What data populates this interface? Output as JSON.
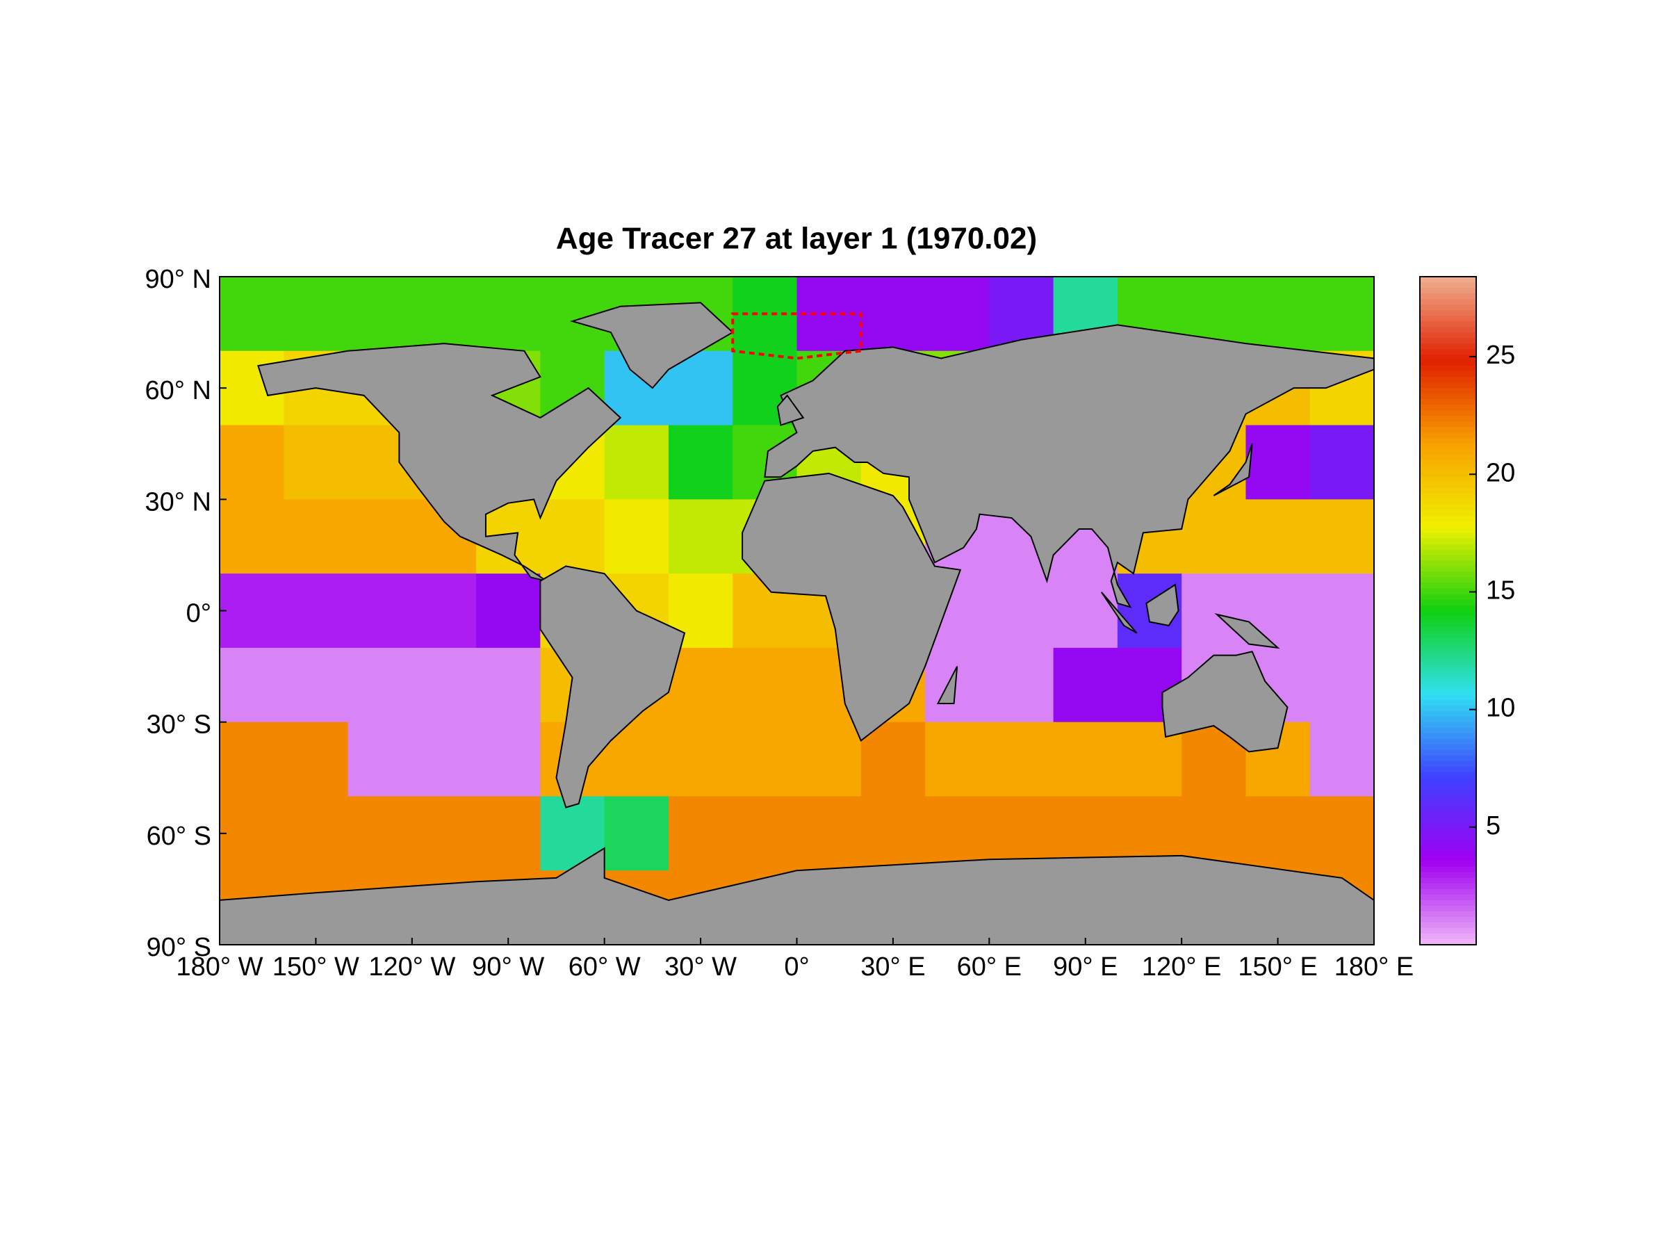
{
  "chart_data": {
    "type": "heatmap",
    "title": "Age Tracer 27 at layer 1 (1970.02)",
    "x": [
      -170,
      -150,
      -130,
      -110,
      -90,
      -70,
      -50,
      -30,
      -10,
      10,
      30,
      50,
      70,
      90,
      110,
      130,
      150,
      170
    ],
    "y": [
      80,
      60,
      40,
      20,
      0,
      -20,
      -40,
      -60,
      -80
    ],
    "values": [
      [
        15,
        15,
        15,
        15,
        15,
        15,
        15,
        15,
        14,
        4,
        4,
        4,
        5,
        12,
        15,
        15,
        15,
        15
      ],
      [
        18,
        19,
        19,
        18,
        16,
        15,
        10,
        10,
        14,
        15,
        16,
        16,
        16,
        16,
        18,
        20,
        20,
        19
      ],
      [
        21,
        20,
        20,
        20,
        19,
        18,
        17,
        14,
        15,
        17,
        18,
        18,
        18,
        18,
        19,
        20,
        4,
        5
      ],
      [
        21,
        21,
        21,
        21,
        19,
        19,
        18,
        17,
        17,
        17,
        18,
        1,
        1,
        1,
        20,
        20,
        20,
        20
      ],
      [
        3,
        3,
        3,
        3,
        4,
        19,
        19,
        18,
        20,
        20,
        20,
        1,
        1,
        1,
        6,
        1,
        1,
        1
      ],
      [
        1,
        1,
        1,
        1,
        1,
        20,
        21,
        21,
        21,
        21,
        21,
        1,
        1,
        4,
        4,
        1,
        1,
        1
      ],
      [
        22,
        22,
        1,
        1,
        1,
        21,
        21,
        21,
        21,
        21,
        22,
        21,
        21,
        21,
        21,
        22,
        21,
        1
      ],
      [
        22,
        22,
        22,
        22,
        22,
        12,
        13,
        22,
        22,
        22,
        22,
        22,
        22,
        22,
        22,
        22,
        22,
        22
      ],
      [
        22,
        22,
        22,
        22,
        22,
        22,
        22,
        22,
        22,
        22,
        22,
        22,
        22,
        22,
        22,
        22,
        22,
        22
      ]
    ],
    "xlim": [
      -180,
      180
    ],
    "ylim": [
      -90,
      90
    ],
    "xticks": [
      {
        "value": -180,
        "label": "180° W"
      },
      {
        "value": -150,
        "label": "150° W"
      },
      {
        "value": -120,
        "label": "120° W"
      },
      {
        "value": -90,
        "label": "90° W"
      },
      {
        "value": -60,
        "label": "60° W"
      },
      {
        "value": -30,
        "label": "30° W"
      },
      {
        "value": 0,
        "label": "0°"
      },
      {
        "value": 30,
        "label": "30° E"
      },
      {
        "value": 60,
        "label": "60° E"
      },
      {
        "value": 90,
        "label": "90° E"
      },
      {
        "value": 120,
        "label": "120° E"
      },
      {
        "value": 150,
        "label": "150° E"
      },
      {
        "value": 180,
        "label": "180° E"
      }
    ],
    "yticks": [
      {
        "value": 90,
        "label": "90° N"
      },
      {
        "value": 60,
        "label": "60° N"
      },
      {
        "value": 30,
        "label": "30° N"
      },
      {
        "value": 0,
        "label": "0°"
      },
      {
        "value": -30,
        "label": "30° S"
      },
      {
        "value": -60,
        "label": "60° S"
      },
      {
        "value": -90,
        "label": "90° S"
      }
    ],
    "clim": [
      0,
      28.4
    ],
    "cticks": [
      5,
      10,
      15,
      20,
      25
    ],
    "colormap": [
      "#f0b8f8",
      "#a000f0",
      "#4040ff",
      "#30e0f0",
      "#10d010",
      "#f0f000",
      "#f8a000",
      "#e02000",
      "#f0b090"
    ]
  }
}
